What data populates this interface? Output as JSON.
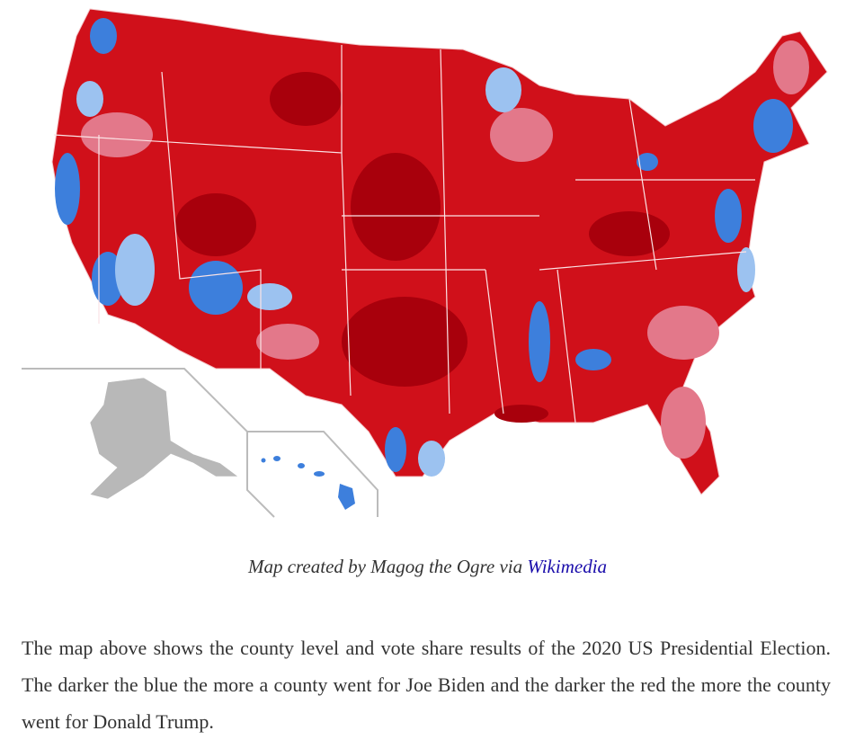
{
  "caption": {
    "text": "Map created by Magog the Ogre via",
    "link": "Wikimedia"
  },
  "paragraph": "The map above shows the county level and vote share results of the 2020 US Presidential Election. The darker the blue the more a county went for Joe Biden and the darker the red the more the county went for Donald Trump."
}
